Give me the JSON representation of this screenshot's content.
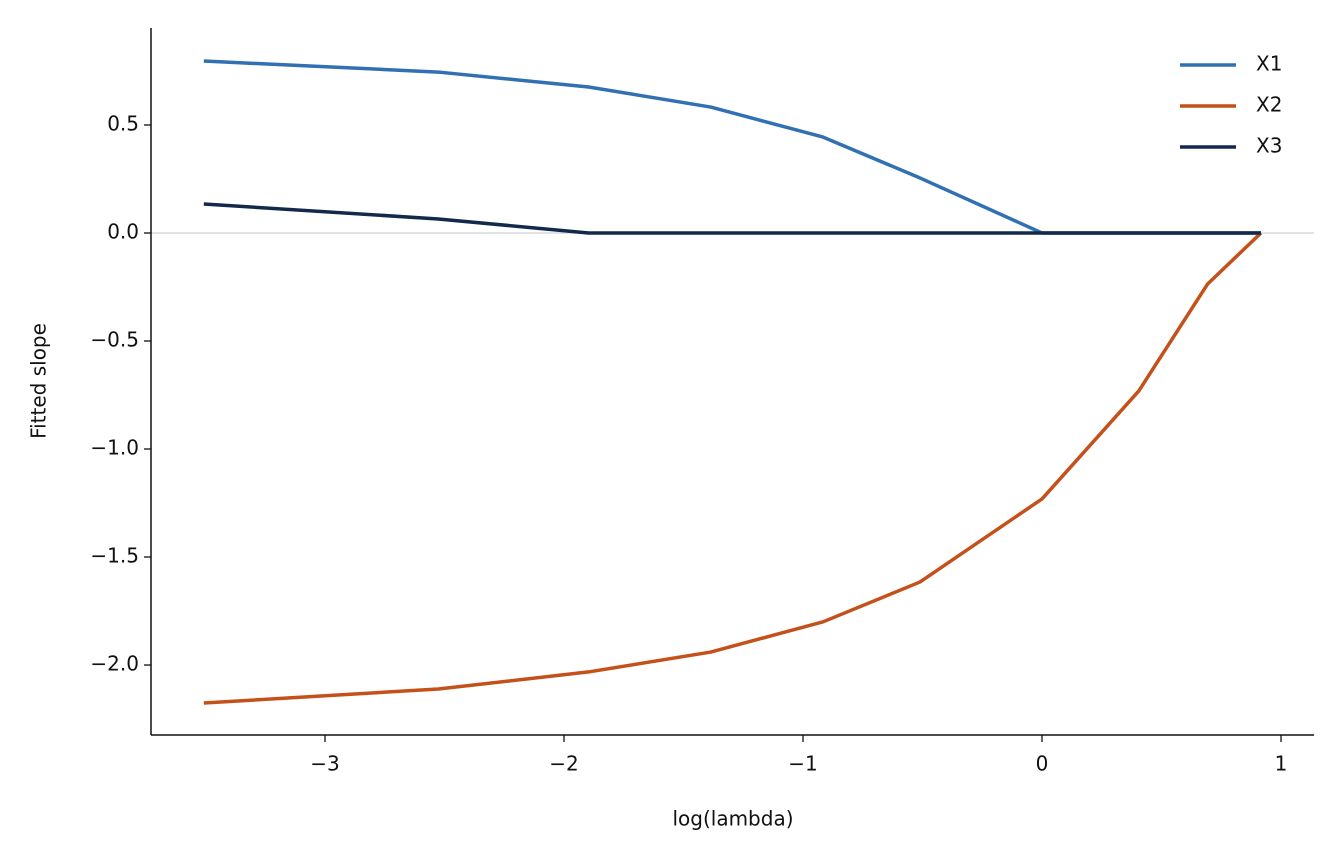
{
  "chart_data": {
    "type": "line",
    "x_label": "log(lambda)",
    "y_label": "Fitted slope",
    "x": [
      -3.507,
      -2.526,
      -1.897,
      -1.386,
      -0.916,
      -0.511,
      0,
      0.405,
      0.693,
      0.916
    ],
    "series": [
      {
        "name": "X1",
        "color": "#3070b3",
        "values": [
          0.796,
          0.745,
          0.676,
          0.583,
          0.444,
          0.255,
          0,
          0,
          0,
          0
        ]
      },
      {
        "name": "X2",
        "color": "#c4501a",
        "values": [
          -2.176,
          -2.111,
          -2.032,
          -1.94,
          -1.8,
          -1.616,
          -1.231,
          -0.731,
          -0.236,
          0
        ]
      },
      {
        "name": "X3",
        "color": "#13294b",
        "values": [
          0.134,
          0.065,
          0,
          0,
          0,
          0,
          0,
          0,
          0,
          0
        ]
      }
    ],
    "xlim": [
      -3.728,
      1.138
    ],
    "ylim": [
      -2.324,
      0.949
    ],
    "xticks": [
      {
        "value": -3,
        "label": "−3"
      },
      {
        "value": -2,
        "label": "−2"
      },
      {
        "value": -1,
        "label": "−1"
      },
      0,
      1
    ],
    "yticks": [
      {
        "value": -2,
        "label": "−2.0"
      },
      {
        "value": -1.5,
        "label": "−1.5"
      },
      {
        "value": -1,
        "label": "−1.0"
      },
      {
        "value": -0.5,
        "label": "−0.5"
      },
      {
        "value": 0,
        "label": "0.0"
      },
      {
        "value": 0.5,
        "label": "0.5"
      }
    ],
    "reference_line": 0,
    "legend": "upper right",
    "grid": false
  }
}
